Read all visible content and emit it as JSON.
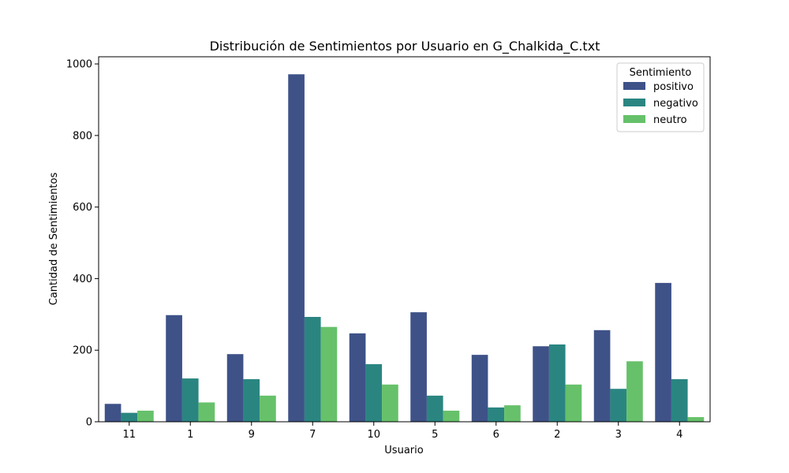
{
  "chart_data": {
    "type": "bar",
    "title": "Distribución de Sentimientos por Usuario en G_Chalkida_C.txt",
    "xlabel": "Usuario",
    "ylabel": "Cantidad de Sentimientos",
    "ylim": [
      0,
      1020
    ],
    "yticks": [
      0,
      200,
      400,
      600,
      800,
      1000
    ],
    "categories": [
      "11",
      "1",
      "9",
      "7",
      "10",
      "5",
      "6",
      "2",
      "3",
      "4"
    ],
    "legend": {
      "title": "Sentimiento",
      "position": "top-right"
    },
    "grid": false,
    "series": [
      {
        "name": "positivo",
        "color": "#3e5288",
        "values": [
          50,
          298,
          189,
          971,
          247,
          306,
          187,
          211,
          256,
          388
        ]
      },
      {
        "name": "negativo",
        "color": "#2a8581",
        "values": [
          25,
          121,
          119,
          293,
          161,
          73,
          40,
          216,
          92,
          119
        ]
      },
      {
        "name": "neutro",
        "color": "#66c16a",
        "values": [
          31,
          54,
          73,
          265,
          104,
          31,
          46,
          104,
          169,
          13
        ]
      }
    ]
  }
}
